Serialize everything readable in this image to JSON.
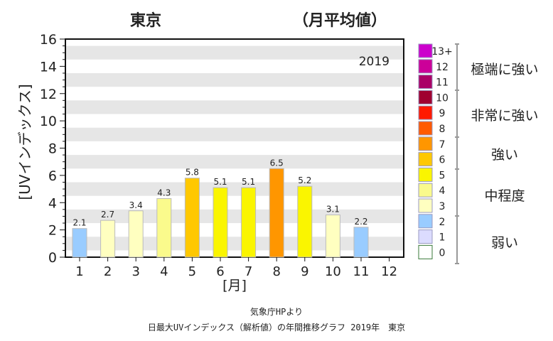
{
  "chart_data": {
    "type": "bar",
    "title": "東京",
    "subtitle": "（月平均値）",
    "annotation": "2019",
    "xlabel": "[月]",
    "ylabel": "[UVインデックス]",
    "ylim": [
      0,
      16
    ],
    "yticks": [
      "0",
      "2",
      "4",
      "6",
      "8",
      "10",
      "12",
      "14",
      "16"
    ],
    "categories": [
      "1",
      "2",
      "3",
      "4",
      "5",
      "6",
      "7",
      "8",
      "9",
      "10",
      "11",
      "12"
    ],
    "values": [
      2.1,
      2.7,
      3.4,
      4.3,
      5.8,
      5.1,
      5.1,
      6.5,
      5.2,
      3.1,
      2.2,
      null
    ],
    "value_labels": [
      "2.1",
      "2.7",
      "3.4",
      "4.3",
      "5.8",
      "5.1",
      "5.1",
      "6.5",
      "5.2",
      "3.1",
      "2.2",
      ""
    ],
    "grid": "alternating horizontal bands",
    "legend": {
      "placement": "right",
      "levels": [
        {
          "label": "13+",
          "color": "#cc00cc"
        },
        {
          "label": "12",
          "color": "#cc0099"
        },
        {
          "label": "11",
          "color": "#aa0066"
        },
        {
          "label": "10",
          "color": "#a00030"
        },
        {
          "label": "9",
          "color": "#ff1a00"
        },
        {
          "label": "8",
          "color": "#ff5a00"
        },
        {
          "label": "7",
          "color": "#ff9600"
        },
        {
          "label": "6",
          "color": "#ffc800"
        },
        {
          "label": "5",
          "color": "#faf500"
        },
        {
          "label": "4",
          "color": "#fafa8c"
        },
        {
          "label": "3",
          "color": "#ffffc0"
        },
        {
          "label": "2",
          "color": "#99ccff"
        },
        {
          "label": "1",
          "color": "#dcdcff"
        },
        {
          "label": "0",
          "color": "#ffffff"
        }
      ],
      "categories": [
        "極端に強い",
        "非常に強い",
        "強い",
        "中程度",
        "弱い"
      ]
    }
  },
  "caption": {
    "line1": "気象庁HPより",
    "line2": "日最大UVインデックス（解析値）の年間推移グラフ 2019年　東京"
  }
}
